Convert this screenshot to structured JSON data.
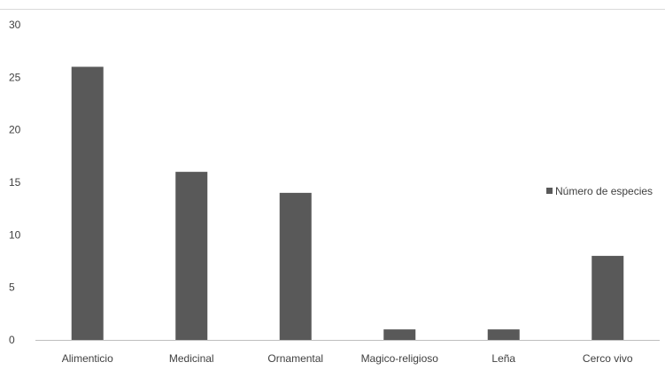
{
  "chart_data": {
    "type": "bar",
    "title": "",
    "xlabel": "",
    "ylabel": "",
    "categories": [
      "Alimenticio",
      "Medicinal",
      "Ornamental",
      "Magico-religioso",
      "Leña",
      "Cerco vivo"
    ],
    "series": [
      {
        "name": "Número de especies",
        "values": [
          26,
          16,
          14,
          1,
          1,
          8
        ],
        "color": "#595959"
      }
    ],
    "ylim": [
      0,
      30
    ],
    "yticks": [
      "0",
      "5",
      "10",
      "15",
      "20",
      "25",
      "30"
    ],
    "grid": false,
    "legend_position": "right"
  }
}
